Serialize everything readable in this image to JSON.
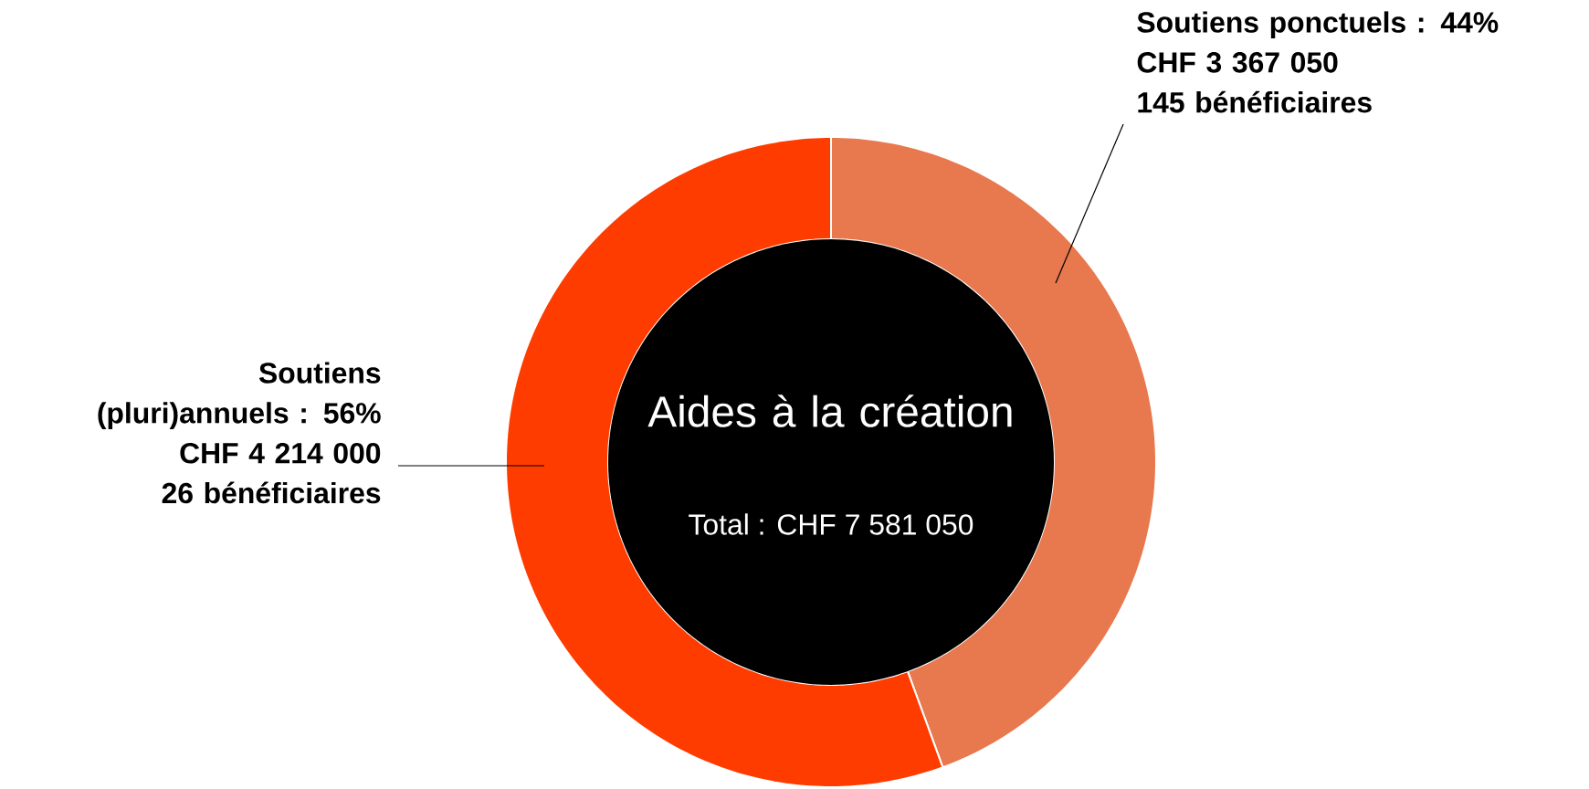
{
  "chart_data": {
    "type": "donut",
    "title": "Aides à la création",
    "subtitle": "Total : CHF 7 581 050",
    "categories": [
      "Soutiens ponctuels : 44%",
      "Soutiens (pluri)annuels : 56%"
    ],
    "values": [
      3367050,
      4214000
    ],
    "colors": [
      "#e8784e",
      "#ff3c00"
    ],
    "value_labels": [
      "CHF 3 367 050",
      "CHF 4 214 000"
    ],
    "annotations": [
      "145 bénéficiaires",
      "26 bénéficiaires"
    ]
  }
}
